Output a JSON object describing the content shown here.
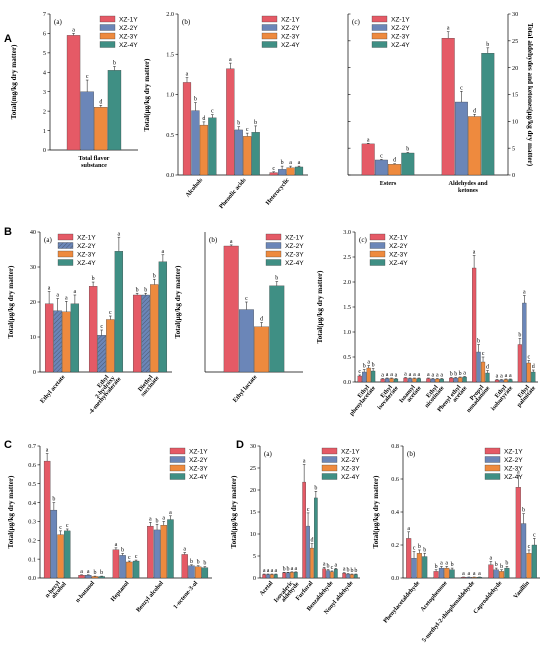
{
  "sections": [
    "A",
    "B",
    "C",
    "D"
  ],
  "chart_data": [
    {
      "id": "A-a",
      "panel": "(a)",
      "type": "bar",
      "section": "A",
      "categories": [
        "Total flavor substance"
      ],
      "ylabel": "Total(mg/kg dry matter)",
      "ylim": [
        0,
        7
      ],
      "yticks": [
        0,
        1,
        2,
        3,
        4,
        5,
        6,
        7
      ],
      "series_names": [
        "XZ-1Y",
        "XZ-2Y",
        "XZ-3Y",
        "XZ-4Y"
      ],
      "values": [
        [
          5.9,
          3.0,
          2.2,
          4.1
        ]
      ],
      "errors": [
        [
          0.1,
          0.6,
          0.1,
          0.2
        ]
      ],
      "letters": [
        [
          "a",
          "c",
          "d",
          "b"
        ]
      ]
    },
    {
      "id": "A-b",
      "panel": "(b)",
      "type": "bar",
      "section": "A",
      "categories": [
        "Alcohols",
        "Phenolic acids",
        "Heterocyclic"
      ],
      "ylabel": "Total(μg/kg dry matter)",
      "ylim": [
        0,
        2.0
      ],
      "yticks": [
        0.0,
        0.5,
        1.0,
        1.5,
        2.0
      ],
      "series_names": [
        "XZ-1Y",
        "XZ-2Y",
        "XZ-3Y",
        "XZ-4Y"
      ],
      "values": [
        [
          1.15,
          0.8,
          0.62,
          0.71
        ],
        [
          1.32,
          0.56,
          0.48,
          0.53
        ],
        [
          0.03,
          0.07,
          0.09,
          0.1
        ]
      ],
      "errors": [
        [
          0.06,
          0.1,
          0.04,
          0.04
        ],
        [
          0.07,
          0.04,
          0.04,
          0.08
        ],
        [
          0.01,
          0.04,
          0.02,
          0.01
        ]
      ],
      "letters": [
        [
          "a",
          "b",
          "d",
          "c"
        ],
        [
          "a",
          "b",
          "c",
          "b"
        ],
        [
          "c",
          "b",
          "a",
          "a"
        ]
      ]
    },
    {
      "id": "A-c",
      "panel": "(c)",
      "type": "bar",
      "section": "A",
      "categories": [
        "Esters",
        "Aldehydes and ketones"
      ],
      "ylabel": "",
      "ylabel_right": "Total aldehydes and ketones(μg/kg dry matter)",
      "ylim": [
        0,
        30
      ],
      "yticks": [
        0,
        5,
        10,
        15,
        20,
        25,
        30
      ],
      "series_names": [
        "XZ-1Y",
        "XZ-2Y",
        "XZ-3Y",
        "XZ-4Y"
      ],
      "values": [
        [
          5.8,
          2.8,
          2.0,
          4.1
        ],
        [
          25.5,
          13.6,
          10.9,
          22.7
        ]
      ],
      "errors": [
        [
          0.1,
          0.1,
          0.1,
          0.1
        ],
        [
          1.2,
          2.0,
          0.4,
          1.0
        ]
      ],
      "letters": [
        [
          "a",
          "c",
          "d",
          "b"
        ],
        [
          "a",
          "c",
          "d",
          "b"
        ]
      ]
    },
    {
      "id": "B-a",
      "panel": "(a)",
      "type": "bar",
      "section": "B",
      "categories": [
        "Ethyl acetate",
        "Ethyl 2-hydroxy -4-methylvalerate",
        "Diethyl succinate"
      ],
      "ylabel": "Total(μg/kg dry matter)",
      "ylim": [
        0,
        40
      ],
      "yticks": [
        0,
        10,
        20,
        30,
        40
      ],
      "series_names": [
        "XZ-1Y",
        "XZ-2Y",
        "XZ-3Y",
        "XZ-4Y"
      ],
      "values": [
        [
          19.5,
          17.5,
          17.2,
          19.5
        ],
        [
          24.5,
          10.5,
          15.0,
          34.5
        ],
        [
          22.0,
          22.0,
          25.0,
          31.5
        ]
      ],
      "errors": [
        [
          3.5,
          3.5,
          3.0,
          2.5
        ],
        [
          1.2,
          1.5,
          1.0,
          4.0
        ],
        [
          0.5,
          0.5,
          1.5,
          2.0
        ]
      ],
      "letters": [
        [
          "a",
          "a",
          "a",
          "a"
        ],
        [
          "b",
          "c",
          "c",
          "a"
        ],
        [
          "b",
          "b",
          "b",
          "a"
        ]
      ]
    },
    {
      "id": "B-b",
      "panel": "(b)",
      "type": "bar",
      "section": "B",
      "categories": [
        "Ethyl lactate"
      ],
      "ylabel": "Total(μg/kg dry matter)",
      "ylim": [
        0,
        6.5
      ],
      "yticks": [],
      "series_names": [
        "XZ-1Y",
        "XZ-2Y",
        "XZ-3Y",
        "XZ-4Y"
      ],
      "values": [
        [
          5.85,
          2.9,
          2.1,
          4.0
        ]
      ],
      "errors": [
        [
          0.05,
          0.35,
          0.2,
          0.2
        ]
      ],
      "letters": [
        [
          "a",
          "c",
          "d",
          "b"
        ]
      ]
    },
    {
      "id": "B-c",
      "panel": "(c)",
      "type": "bar",
      "section": "B",
      "categories": [
        "Ethyl phenylacetate",
        "Ethyl isovalerate",
        "Isoamyl acetate",
        "Ethyl nicotinate",
        "Phenyl ethyl acetate",
        "Propyl nonadanone",
        "Ethyl isobutyrate",
        "Ethyl palmitate"
      ],
      "ylabel": "Total(μg/kg dry matter)",
      "ylim": [
        0,
        3.0
      ],
      "yticks": [
        0.0,
        0.5,
        1.0,
        1.5,
        2.0,
        2.5,
        3.0
      ],
      "series_names": [
        "XZ-1Y",
        "XZ-2Y",
        "XZ-3Y",
        "XZ-4Y"
      ],
      "values": [
        [
          0.12,
          0.2,
          0.28,
          0.22
        ],
        [
          0.06,
          0.07,
          0.07,
          0.06
        ],
        [
          0.08,
          0.07,
          0.07,
          0.07
        ],
        [
          0.07,
          0.06,
          0.06,
          0.06
        ],
        [
          0.08,
          0.08,
          0.09,
          0.1
        ],
        [
          2.28,
          0.6,
          0.4,
          0.18
        ],
        [
          0.04,
          0.04,
          0.05,
          0.05
        ],
        [
          0.75,
          1.58,
          0.38,
          0.2
        ]
      ],
      "errors": [
        [
          0.02,
          0.05,
          0.05,
          0.05
        ],
        [
          0.01,
          0.01,
          0.01,
          0.01
        ],
        [
          0.01,
          0.01,
          0.01,
          0.01
        ],
        [
          0.01,
          0.01,
          0.01,
          0.01
        ],
        [
          0.01,
          0.01,
          0.01,
          0.01
        ],
        [
          0.25,
          0.15,
          0.1,
          0.05
        ],
        [
          0.01,
          0.01,
          0.01,
          0.01
        ],
        [
          0.12,
          0.15,
          0.05,
          0.04
        ]
      ],
      "letters": [
        [
          "c",
          "b",
          "a",
          "b"
        ],
        [
          "a",
          "a",
          "a",
          "a"
        ],
        [
          "a",
          "a",
          "a",
          "a"
        ],
        [
          "a",
          "a",
          "a",
          "a"
        ],
        [
          "b",
          "b",
          "b",
          "a"
        ],
        [
          "a",
          "b",
          "c",
          "d"
        ],
        [
          "a",
          "a",
          "a",
          "a"
        ],
        [
          "b",
          "a",
          "c",
          "d"
        ]
      ]
    },
    {
      "id": "C",
      "panel": "",
      "type": "bar",
      "section": "C",
      "categories": [
        "n-hexyl alcohol",
        "n-butanol",
        "Heptanol",
        "Benzyl alcohol",
        "1-octene-3-ol"
      ],
      "ylabel": "Total(μg/kg dry matter)",
      "ylim": [
        0,
        0.7
      ],
      "yticks": [
        0.0,
        0.1,
        0.2,
        0.3,
        0.4,
        0.5,
        0.6,
        0.7
      ],
      "series_names": [
        "XZ-1Y",
        "XZ-2Y",
        "XZ-3Y",
        "XZ-4Y"
      ],
      "values": [
        [
          0.62,
          0.36,
          0.23,
          0.25
        ],
        [
          0.015,
          0.015,
          0.008,
          0.008
        ],
        [
          0.15,
          0.12,
          0.085,
          0.09
        ],
        [
          0.275,
          0.255,
          0.28,
          0.31
        ],
        [
          0.125,
          0.065,
          0.06,
          0.055
        ]
      ],
      "errors": [
        [
          0.04,
          0.04,
          0.02,
          0.01
        ],
        [
          0.002,
          0.002,
          0.002,
          0.002
        ],
        [
          0.01,
          0.01,
          0.005,
          0.005
        ],
        [
          0.02,
          0.03,
          0.02,
          0.02
        ],
        [
          0.01,
          0.005,
          0.005,
          0.005
        ]
      ],
      "letters": [
        [
          "a",
          "b",
          "c",
          "c"
        ],
        [
          "a",
          "a",
          "b",
          "b"
        ],
        [
          "a",
          "b",
          "c",
          "c"
        ],
        [
          "a",
          "b",
          "a",
          "a"
        ],
        [
          "a",
          "b",
          "b",
          "b"
        ]
      ]
    },
    {
      "id": "D-a",
      "panel": "(a)",
      "type": "bar",
      "section": "D",
      "categories": [
        "Acetal",
        "Isovaleric aldehyde",
        "Furfural",
        "Benzaldehyde",
        "Nonyl aldehyde"
      ],
      "ylabel": "Total(μg/kg dry matter)",
      "ylim": [
        0,
        30
      ],
      "yticks": [
        0,
        5,
        10,
        15,
        20,
        25,
        30
      ],
      "series_names": [
        "XZ-1Y",
        "XZ-2Y",
        "XZ-3Y",
        "XZ-4Y"
      ],
      "values": [
        [
          0.8,
          0.8,
          0.8,
          0.8
        ],
        [
          1.2,
          1.2,
          1.3,
          1.3
        ],
        [
          21.8,
          11.8,
          6.8,
          18.2
        ],
        [
          2.1,
          1.7,
          1.4,
          2.0
        ],
        [
          1.1,
          0.9,
          0.8,
          0.8
        ]
      ],
      "errors": [
        [
          0.1,
          0.1,
          0.1,
          0.1
        ],
        [
          0.1,
          0.1,
          0.1,
          0.1
        ],
        [
          4.0,
          3.0,
          1.0,
          1.5
        ],
        [
          0.3,
          0.2,
          0.2,
          0.2
        ],
        [
          0.1,
          0.1,
          0.1,
          0.1
        ]
      ],
      "letters": [
        [
          "a",
          "a",
          "a",
          "a"
        ],
        [
          "b",
          "b",
          "a",
          "a"
        ],
        [
          "a",
          "c",
          "d",
          "b"
        ],
        [
          "a",
          "b",
          "c",
          "a"
        ],
        [
          "a",
          "b",
          "b",
          "b"
        ]
      ]
    },
    {
      "id": "D-b",
      "panel": "(b)",
      "type": "bar",
      "section": "D",
      "categories": [
        "Phenylacetaldehyde",
        "Acetophenone",
        "5-methyl-2-thiophenaldehyde",
        "Caproaldehyde",
        "Vanillin"
      ],
      "ylabel": "Total(μg/kg dry matter)",
      "ylim": [
        0,
        0.8
      ],
      "yticks": [
        0.0,
        0.2,
        0.4,
        0.6,
        0.8
      ],
      "series_names": [
        "XZ-1Y",
        "XZ-2Y",
        "XZ-3Y",
        "XZ-4Y"
      ],
      "values": [
        [
          0.24,
          0.12,
          0.15,
          0.13
        ],
        [
          0.04,
          0.06,
          0.06,
          0.05
        ],
        [
          0.005,
          0.005,
          0.005,
          0.005
        ],
        [
          0.08,
          0.05,
          0.04,
          0.06
        ],
        [
          0.55,
          0.33,
          0.15,
          0.2
        ]
      ],
      "errors": [
        [
          0.04,
          0.04,
          0.02,
          0.02
        ],
        [
          0.01,
          0.01,
          0.01,
          0.01
        ],
        [
          0.001,
          0.001,
          0.001,
          0.001
        ],
        [
          0.02,
          0.01,
          0.01,
          0.01
        ],
        [
          0.07,
          0.06,
          0.02,
          0.04
        ]
      ],
      "letters": [
        [
          "a",
          "c",
          "b",
          "b"
        ],
        [
          "b",
          "a",
          "a",
          "b"
        ],
        [
          "a",
          "a",
          "a",
          "a"
        ],
        [
          "a",
          "b",
          "b",
          "b"
        ],
        [
          "a",
          "b",
          "c",
          "c"
        ]
      ]
    }
  ],
  "colors": {
    "XZ-1Y": "#e55a66",
    "XZ-2Y": "#6b86b8",
    "XZ-3Y": "#ee8a3e",
    "XZ-4Y": "#3f8f84"
  },
  "hatch_color": "#3a3a3a"
}
